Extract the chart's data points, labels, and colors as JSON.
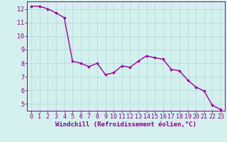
{
  "x": [
    0,
    1,
    2,
    3,
    4,
    5,
    6,
    7,
    8,
    9,
    10,
    11,
    12,
    13,
    14,
    15,
    16,
    17,
    18,
    19,
    20,
    21,
    22,
    23
  ],
  "y": [
    12.2,
    12.2,
    12.0,
    11.7,
    11.35,
    8.15,
    8.0,
    7.75,
    8.0,
    7.15,
    7.3,
    7.8,
    7.7,
    8.15,
    8.55,
    8.4,
    8.3,
    7.55,
    7.45,
    6.75,
    6.25,
    5.95,
    4.9,
    4.6
  ],
  "line_color": "#990099",
  "marker": "D",
  "marker_size": 1.8,
  "line_width": 1.0,
  "xlabel": "Windchill (Refroidissement éolien,°C)",
  "xlim": [
    -0.5,
    23.5
  ],
  "ylim": [
    4.5,
    12.55
  ],
  "yticks": [
    5,
    6,
    7,
    8,
    9,
    10,
    11,
    12
  ],
  "xticks": [
    0,
    1,
    2,
    3,
    4,
    5,
    6,
    7,
    8,
    9,
    10,
    11,
    12,
    13,
    14,
    15,
    16,
    17,
    18,
    19,
    20,
    21,
    22,
    23
  ],
  "background_color": "#d4f0ee",
  "grid_color": "#b0d8d8",
  "axis_color": "#880088",
  "tick_color": "#880088",
  "label_color": "#880088",
  "font_size": 6.0,
  "xlabel_fontsize": 6.5
}
